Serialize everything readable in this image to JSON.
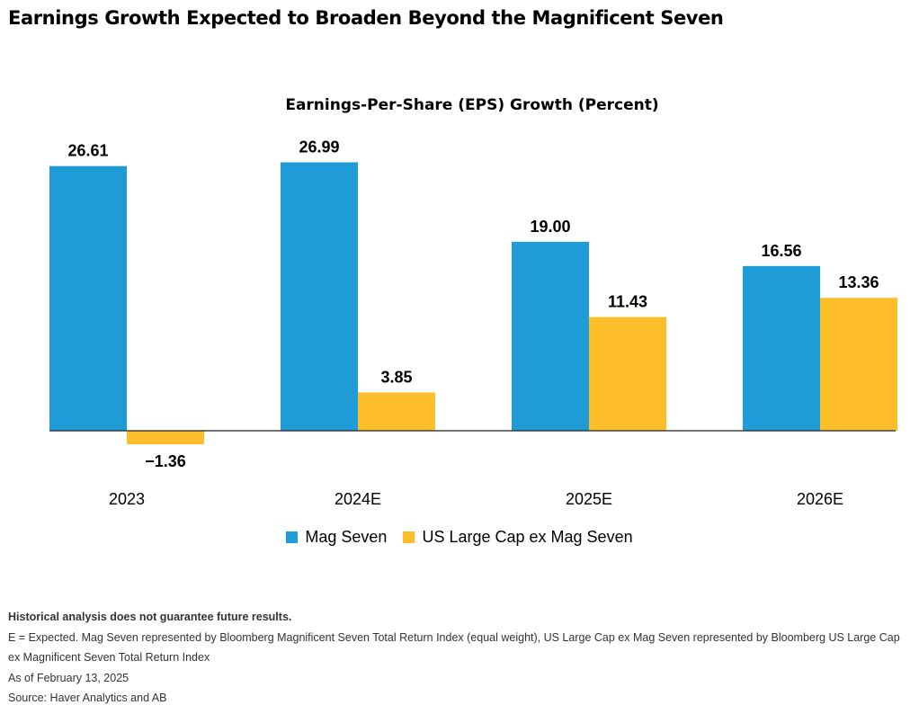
{
  "header": {
    "title": "Earnings Growth Expected to Broaden Beyond the Magnificent Seven"
  },
  "chart_data": {
    "type": "bar",
    "title": "Earnings-Per-Share (EPS) Growth (Percent)",
    "categories": [
      "2023",
      "2024E",
      "2025E",
      "2026E"
    ],
    "series": [
      {
        "name": "Mag Seven",
        "values": [
          26.61,
          26.99,
          19.0,
          16.56
        ],
        "labels": [
          "26.61",
          "26.99",
          "19.00",
          "16.56"
        ],
        "color": "#1f9bd7"
      },
      {
        "name": "US Large Cap ex Mag Seven",
        "values": [
          -1.36,
          3.85,
          11.43,
          13.36
        ],
        "labels": [
          "−1.36",
          "3.85",
          "11.43",
          "13.36"
        ],
        "color": "#fdbe2a"
      }
    ],
    "ylim": [
      -1.36,
      26.99
    ],
    "grid": false,
    "legend_position": "bottom"
  },
  "footer": {
    "notes": [
      "Historical analysis does not guarantee future results.",
      "E = Expected. Mag Seven represented by Bloomberg Magnificent Seven Total Return Index (equal weight), US Large Cap ex Mag Seven represented by Bloomberg US Large Cap ex Magnificent Seven Total Return Index",
      "As of February 13, 2025",
      "Source: Haver Analytics and AB"
    ]
  }
}
